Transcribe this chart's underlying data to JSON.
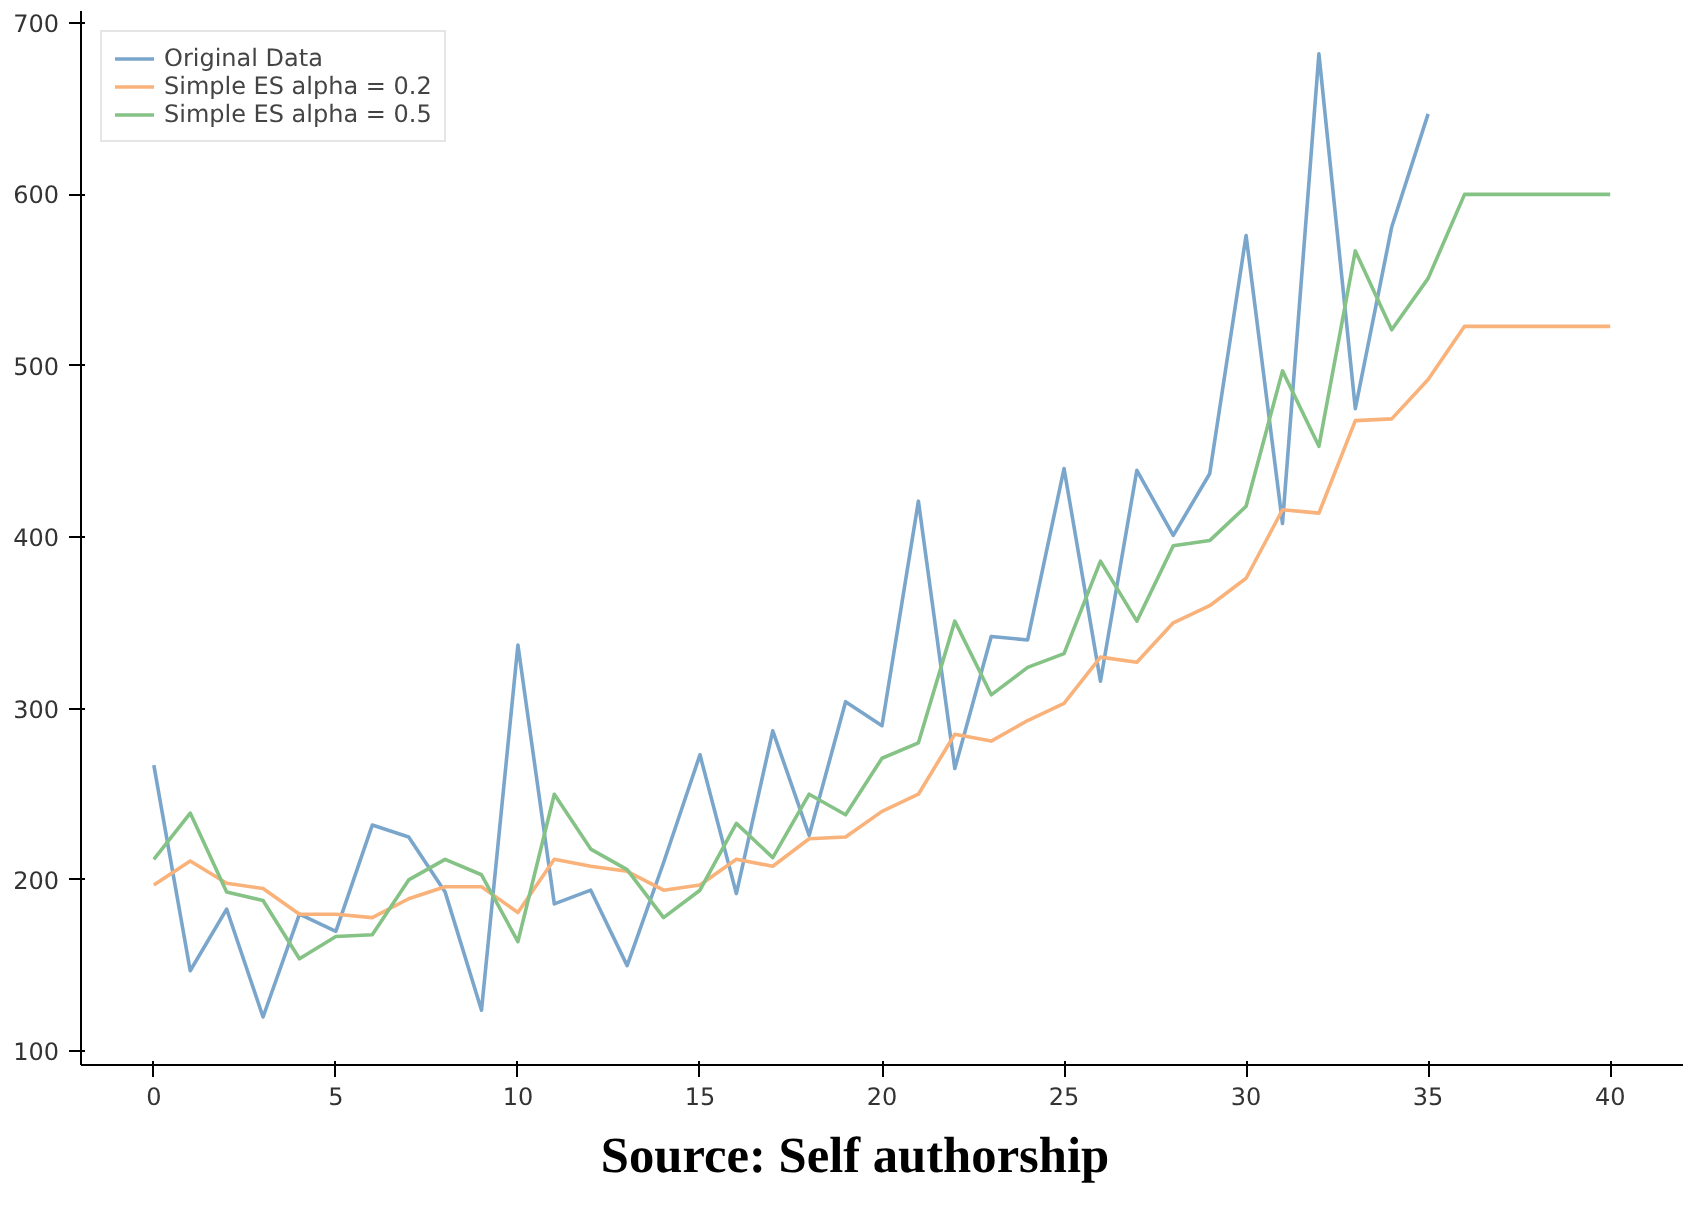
{
  "chart_data": {
    "type": "line",
    "x": [
      0,
      1,
      2,
      3,
      4,
      5,
      6,
      7,
      8,
      9,
      10,
      11,
      12,
      13,
      14,
      15,
      16,
      17,
      18,
      19,
      20,
      21,
      22,
      23,
      24,
      25,
      26,
      27,
      28,
      29,
      30,
      31,
      32,
      33,
      34,
      35,
      36,
      37,
      38,
      39,
      40
    ],
    "series": [
      {
        "name": "Original Data",
        "color": "#7aa6cc",
        "values": [
          267,
          147,
          183,
          120,
          180,
          170,
          232,
          225,
          193,
          124,
          337,
          186,
          194,
          150,
          210,
          273,
          192,
          287,
          226,
          304,
          290,
          421,
          265,
          342,
          340,
          440,
          316,
          439,
          401,
          437,
          576,
          408,
          682,
          475,
          581,
          647,
          null,
          null,
          null,
          null,
          null
        ]
      },
      {
        "name": "Simple ES alpha = 0.2",
        "color": "#f9b27a",
        "values": [
          197,
          211,
          198,
          195,
          180,
          180,
          178,
          189,
          196,
          196,
          181,
          212,
          208,
          205,
          194,
          197,
          212,
          208,
          224,
          225,
          240,
          250,
          285,
          281,
          293,
          303,
          330,
          327,
          350,
          360,
          376,
          416,
          414,
          468,
          469,
          492,
          523,
          523,
          523,
          523,
          523
        ]
      },
      {
        "name": "Simple ES alpha = 0.5",
        "color": "#85c285",
        "values": [
          212,
          239,
          193,
          188,
          154,
          167,
          168,
          200,
          212,
          203,
          164,
          250,
          218,
          206,
          178,
          194,
          233,
          213,
          250,
          238,
          271,
          280,
          351,
          308,
          324,
          332,
          386,
          351,
          395,
          398,
          418,
          497,
          453,
          567,
          521,
          551,
          600,
          600,
          600,
          600,
          600
        ]
      }
    ],
    "xlim": [
      -2,
      42
    ],
    "ylim": [
      92,
      707
    ],
    "xticks": [
      0,
      5,
      10,
      15,
      20,
      25,
      30,
      35,
      40
    ],
    "yticks": [
      100,
      200,
      300,
      400,
      500,
      600,
      700
    ],
    "grid": false,
    "legend": "top left",
    "marker": "none",
    "line_style": "solid",
    "annotations": [
      "Source: Self authorship"
    ]
  }
}
